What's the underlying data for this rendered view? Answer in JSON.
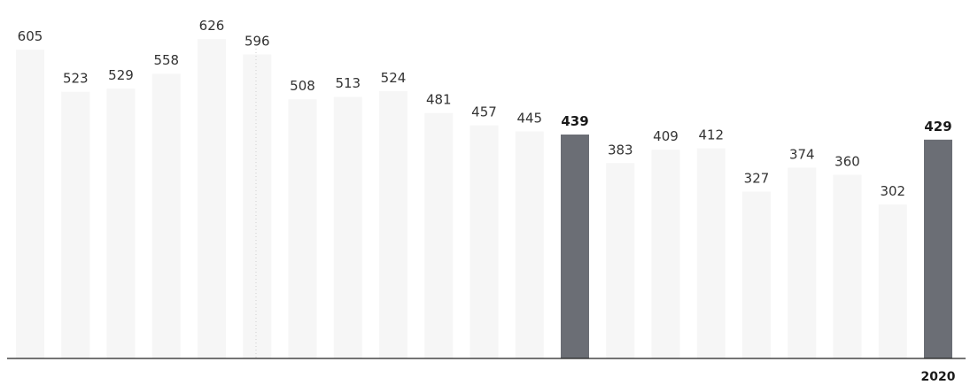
{
  "chart_data": {
    "type": "bar",
    "categories": [
      "",
      "",
      "",
      "",
      "",
      "",
      "",
      "",
      "",
      "",
      "",
      "",
      "",
      "",
      "",
      "",
      "",
      "",
      "",
      "",
      ""
    ],
    "values": [
      605,
      523,
      529,
      558,
      626,
      596,
      508,
      513,
      524,
      481,
      457,
      445,
      439,
      383,
      409,
      412,
      327,
      374,
      360,
      302,
      429
    ],
    "highlight_indices": [
      12,
      20
    ],
    "x_tick_labels": [
      {
        "index": 20,
        "label": "2020"
      }
    ],
    "title": "",
    "xlabel": "",
    "ylabel": "",
    "ylim": [
      0,
      700
    ],
    "grid": false,
    "colors": {
      "highlight_bar": "#6b6e75",
      "faded_bar": "#eeeeee",
      "axis": "#222222",
      "label": "#333333"
    }
  }
}
